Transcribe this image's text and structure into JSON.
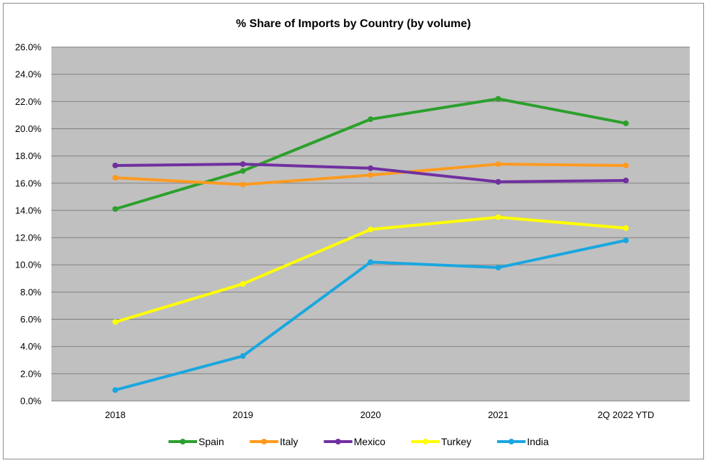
{
  "chart_data": {
    "type": "line",
    "title": "% Share of Imports by Country (by volume)",
    "xlabel": "",
    "ylabel": "",
    "categories": [
      "2018",
      "2019",
      "2020",
      "2021",
      "2Q 2022 YTD"
    ],
    "ylim": [
      0,
      26
    ],
    "yticks": [
      0,
      2,
      4,
      6,
      8,
      10,
      12,
      14,
      16,
      18,
      20,
      22,
      24,
      26
    ],
    "ytick_labels": [
      "0.0%",
      "2.0%",
      "4.0%",
      "6.0%",
      "8.0%",
      "10.0%",
      "12.0%",
      "14.0%",
      "16.0%",
      "18.0%",
      "20.0%",
      "22.0%",
      "24.0%",
      "26.0%"
    ],
    "grid": true,
    "plot_background": "#c0c0c0",
    "legend_position": "bottom",
    "series": [
      {
        "name": "Spain",
        "color": "#2ca02c",
        "values": [
          14.1,
          16.9,
          20.7,
          22.2,
          20.4
        ]
      },
      {
        "name": "Italy",
        "color": "#ff9a1f",
        "values": [
          16.4,
          15.9,
          16.6,
          17.4,
          17.3
        ]
      },
      {
        "name": "Mexico",
        "color": "#7030a0",
        "values": [
          17.3,
          17.4,
          17.1,
          16.1,
          16.2
        ]
      },
      {
        "name": "Turkey",
        "color": "#ffff00",
        "values": [
          5.8,
          8.6,
          12.6,
          13.5,
          12.7
        ]
      },
      {
        "name": "India",
        "color": "#1aa7e0",
        "values": [
          0.8,
          3.3,
          10.2,
          9.8,
          11.8
        ]
      }
    ]
  }
}
